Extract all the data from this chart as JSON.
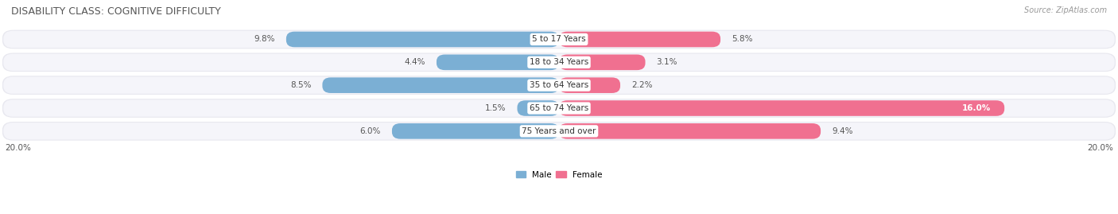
{
  "title": "DISABILITY CLASS: COGNITIVE DIFFICULTY",
  "source": "Source: ZipAtlas.com",
  "categories": [
    "5 to 17 Years",
    "18 to 34 Years",
    "35 to 64 Years",
    "65 to 74 Years",
    "75 Years and over"
  ],
  "male_values": [
    9.8,
    4.4,
    8.5,
    1.5,
    6.0
  ],
  "female_values": [
    5.8,
    3.1,
    2.2,
    16.0,
    9.4
  ],
  "max_value": 20.0,
  "male_color": "#7bafd4",
  "female_color": "#f07090",
  "male_color_light": "#b8d4ea",
  "row_bg_color": "#e8e8ef",
  "row_inner_color": "#f5f5fa",
  "title_fontsize": 9,
  "label_fontsize": 7.5,
  "cat_fontsize": 7.5,
  "tick_fontsize": 7.5,
  "source_fontsize": 7
}
